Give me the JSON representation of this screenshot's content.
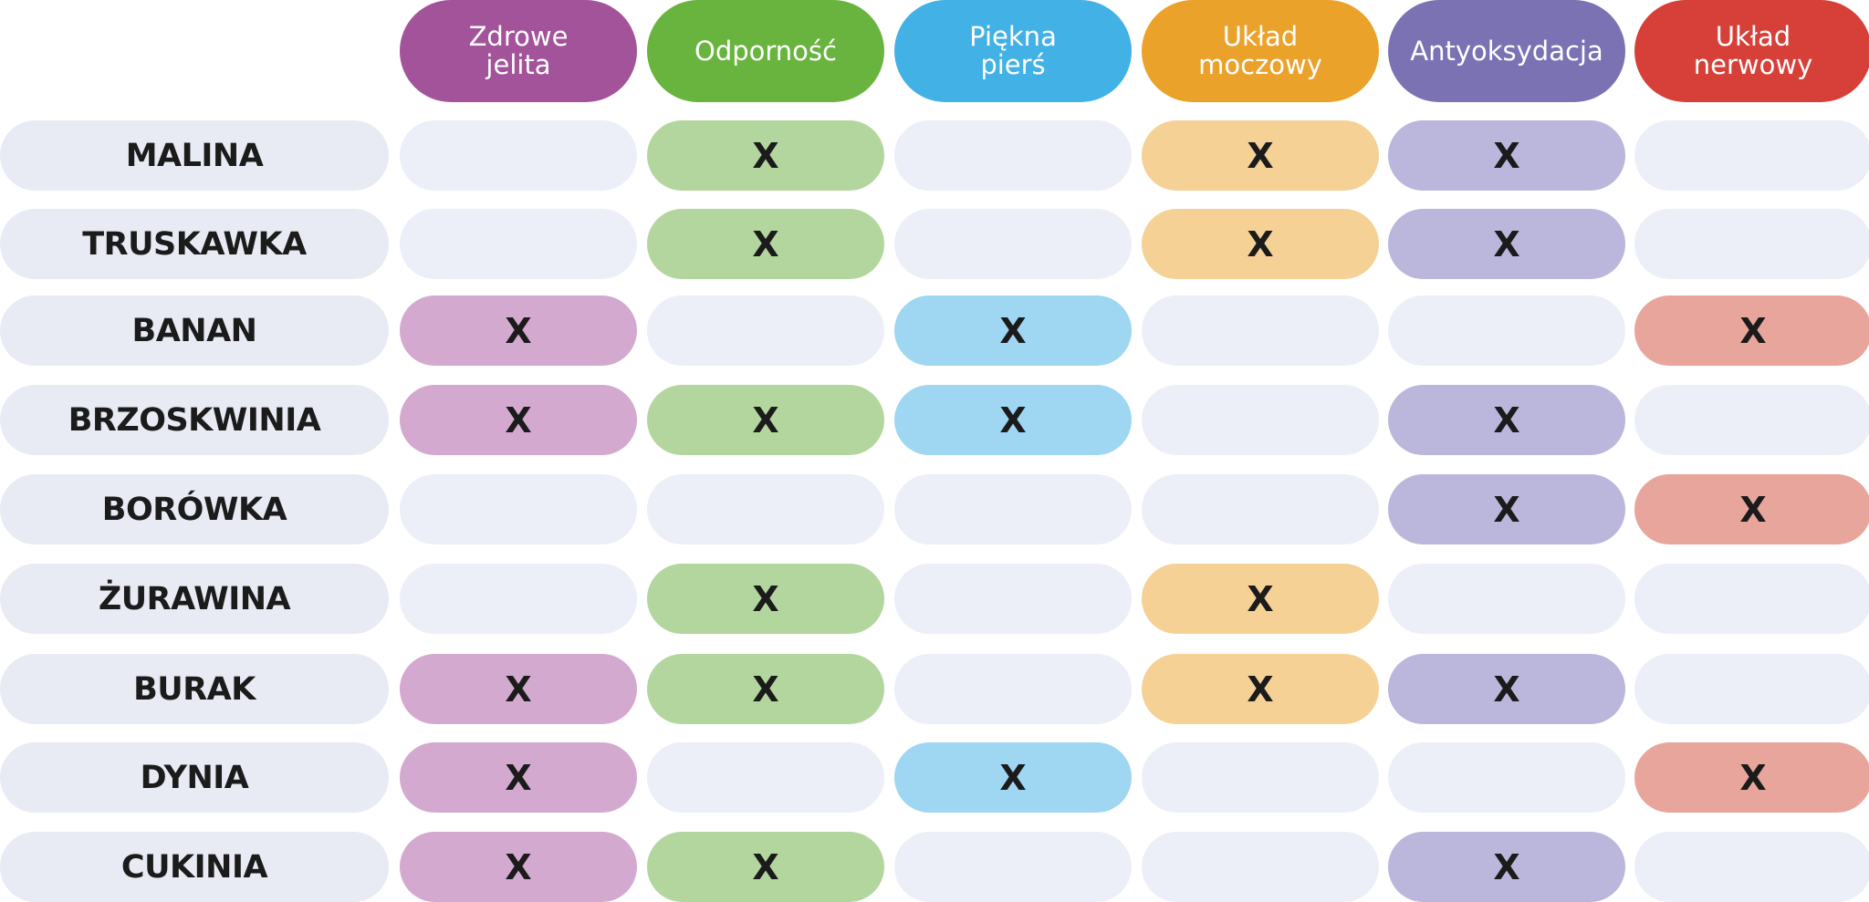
{
  "columns": [
    {
      "label": "Zdrowe\njelita",
      "header_color": "#a3539a",
      "fill_color": "#d4a9cf"
    },
    {
      "label": "Odporność",
      "header_color": "#68b43e",
      "fill_color": "#b3d69e"
    },
    {
      "label": "Piękna\npierś",
      "header_color": "#42b1e6",
      "fill_color": "#9fd6f2"
    },
    {
      "label": "Układ\nmoczowy",
      "header_color": "#eba22a",
      "fill_color": "#f6d196"
    },
    {
      "label": "Antyoksydacja",
      "header_color": "#7a72b3",
      "fill_color": "#bbb6db"
    },
    {
      "label": "Układ\nnerwowy",
      "header_color": "#d64038",
      "fill_color": "#e8a59c"
    }
  ],
  "mark": "X",
  "empty_color": "#eceff7",
  "rows": [
    {
      "label": "MALINA",
      "marks": [
        false,
        true,
        false,
        true,
        true,
        false
      ]
    },
    {
      "label": "TRUSKAWKA",
      "marks": [
        false,
        true,
        false,
        true,
        true,
        false
      ]
    },
    {
      "label": "BANAN",
      "marks": [
        true,
        false,
        true,
        false,
        false,
        true
      ]
    },
    {
      "label": "BRZOSKWINIA",
      "marks": [
        true,
        true,
        true,
        false,
        true,
        false
      ]
    },
    {
      "label": "BORÓWKA",
      "marks": [
        false,
        false,
        false,
        false,
        true,
        true
      ]
    },
    {
      "label": "ŻURAWINA",
      "marks": [
        false,
        true,
        false,
        true,
        false,
        false
      ]
    },
    {
      "label": "BURAK",
      "marks": [
        true,
        true,
        false,
        true,
        true,
        false
      ]
    },
    {
      "label": "DYNIA",
      "marks": [
        true,
        false,
        true,
        false,
        false,
        true
      ]
    },
    {
      "label": "CUKINIA",
      "marks": [
        true,
        true,
        false,
        false,
        true,
        false
      ]
    }
  ]
}
